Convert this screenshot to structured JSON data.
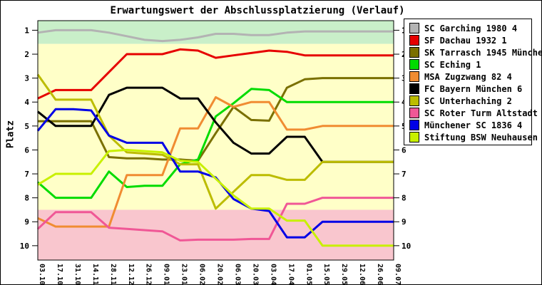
{
  "title": "Erwartungswert der Abschlussplatzierung (Verlauf)",
  "y_axis": {
    "ticks": [
      "1",
      "2",
      "3",
      "4",
      "5",
      "6",
      "7",
      "8",
      "9",
      "10"
    ]
  },
  "chart_data": {
    "type": "line",
    "title": "Erwartungswert der Abschlussplatzierung (Verlauf)",
    "xlabel": "",
    "ylabel": "Platz",
    "ylim": [
      0.6,
      10.6
    ],
    "y_inverted": true,
    "grid": false,
    "legend_position": "top-right",
    "x": [
      "03.10",
      "17.10",
      "31.10",
      "14.11",
      "28.11",
      "12.12",
      "26.12",
      "09.01",
      "23.01",
      "06.02",
      "20.02",
      "06.03",
      "20.03",
      "03.04",
      "17.04",
      "01.05",
      "15.05",
      "29.05",
      "12.06",
      "26.06",
      "09.07"
    ],
    "bands": [
      {
        "name": "promotion-zone",
        "color": "#c9efc9",
        "from": 0.6,
        "to": 1.57
      },
      {
        "name": "mid-zone",
        "color": "#ffffc8",
        "from": 1.57,
        "to": 8.5
      },
      {
        "name": "relegation-zone",
        "color": "#f9c6ce",
        "from": 8.5,
        "to": 10.6
      }
    ],
    "series": [
      {
        "name": "SC Garching 1980 4",
        "color": "#b3b3b3",
        "values": [
          1.1,
          1.0,
          1.0,
          1.0,
          1.1,
          1.25,
          1.4,
          1.45,
          1.4,
          1.3,
          1.15,
          1.15,
          1.2,
          1.2,
          1.1,
          1.05,
          1.05,
          1.05,
          1.05,
          1.05,
          1.05
        ]
      },
      {
        "name": "SF Dachau 1932 1",
        "color": "#e60000",
        "values": [
          3.85,
          3.5,
          3.5,
          3.5,
          2.75,
          2.0,
          2.0,
          2.0,
          1.8,
          1.85,
          2.15,
          2.05,
          1.95,
          1.85,
          1.9,
          2.05,
          2.05,
          2.05,
          2.05,
          2.05,
          2.05
        ]
      },
      {
        "name": "SK Tarrasch 1945 München 3",
        "color": "#7a7000",
        "values": [
          4.8,
          4.8,
          4.8,
          4.8,
          6.3,
          6.35,
          6.35,
          6.4,
          6.4,
          6.45,
          5.3,
          4.2,
          4.75,
          4.78,
          3.4,
          3.05,
          3.0,
          3.0,
          3.0,
          3.0,
          3.0
        ]
      },
      {
        "name": "SC Eching 1",
        "color": "#00dc00",
        "values": [
          7.35,
          8.0,
          8.0,
          8.0,
          6.9,
          7.55,
          7.5,
          7.5,
          6.6,
          6.4,
          4.6,
          4.05,
          3.45,
          3.5,
          4.0,
          4.0,
          4.0,
          4.0,
          4.0,
          4.0,
          4.0
        ]
      },
      {
        "name": "MSA Zugzwang 82 4",
        "color": "#f08c32",
        "values": [
          8.85,
          9.2,
          9.2,
          9.2,
          9.2,
          7.05,
          7.05,
          7.05,
          5.1,
          5.1,
          3.8,
          4.2,
          4.0,
          4.0,
          5.15,
          5.15,
          5.0,
          5.0,
          5.0,
          5.0,
          5.0
        ]
      },
      {
        "name": "FC Bayern München 6",
        "color": "#000000",
        "values": [
          4.4,
          5.0,
          5.0,
          5.0,
          3.7,
          3.4,
          3.4,
          3.4,
          3.85,
          3.85,
          4.85,
          5.7,
          6.15,
          6.15,
          5.45,
          5.45,
          6.5,
          6.5,
          6.5,
          6.5,
          6.5
        ]
      },
      {
        "name": "SC Unterhaching 2",
        "color": "#bcbc00",
        "values": [
          2.85,
          3.9,
          3.9,
          3.9,
          5.4,
          6.1,
          6.15,
          6.2,
          6.6,
          6.6,
          8.45,
          7.75,
          7.05,
          7.05,
          7.25,
          7.25,
          6.5,
          6.5,
          6.5,
          6.5,
          6.5
        ]
      },
      {
        "name": "SC Roter Turm Altstadt 3",
        "color": "#f05796",
        "values": [
          9.3,
          8.6,
          8.6,
          8.6,
          9.25,
          9.3,
          9.35,
          9.4,
          9.78,
          9.75,
          9.75,
          9.75,
          9.72,
          9.72,
          8.25,
          8.25,
          8.0,
          8.0,
          8.0,
          8.0,
          8.0
        ]
      },
      {
        "name": "Münchener SC 1836 4",
        "color": "#0000e6",
        "values": [
          5.2,
          4.3,
          4.3,
          4.35,
          5.4,
          5.7,
          5.7,
          5.7,
          6.9,
          6.9,
          7.15,
          8.05,
          8.45,
          8.55,
          9.65,
          9.65,
          9.0,
          9.0,
          9.0,
          9.0,
          9.0
        ]
      },
      {
        "name": "Stiftung BSW Neuhausen 1",
        "color": "#c8f000",
        "values": [
          7.45,
          7.0,
          7.0,
          7.0,
          6.05,
          6.0,
          6.05,
          6.1,
          6.45,
          6.5,
          7.2,
          7.9,
          8.45,
          8.45,
          8.95,
          8.95,
          10.0,
          10.0,
          10.0,
          10.0,
          10.0
        ]
      }
    ]
  }
}
